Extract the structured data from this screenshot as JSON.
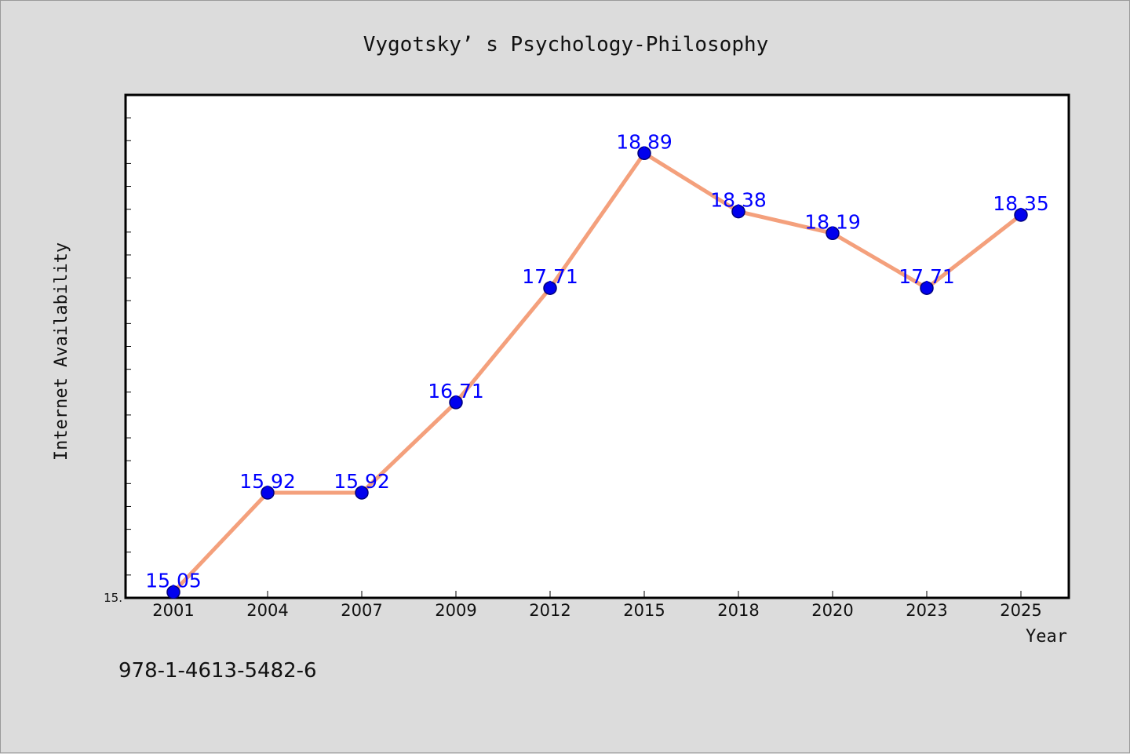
{
  "chart_data": {
    "type": "line",
    "title": "Vygotsky’ s Psychology-Philosophy",
    "xlabel": "Year",
    "ylabel": "Internet Availability",
    "categories": [
      "2001",
      "2004",
      "2007",
      "2009",
      "2012",
      "2015",
      "2018",
      "2020",
      "2023",
      "2025"
    ],
    "series": [
      {
        "values": [
          15.05,
          15.92,
          15.92,
          16.71,
          17.71,
          18.89,
          18.38,
          18.19,
          17.71,
          18.35
        ],
        "data_labels": [
          "15.05",
          "15.92",
          "15.92",
          "16.71",
          "17.71",
          "18.89",
          "18.38",
          "18.19",
          "17.71",
          "18.35"
        ]
      }
    ],
    "ylim": [
      15.0,
      19.4
    ],
    "ytick_labels": [
      "15."
    ],
    "ytick_values": [
      15.0
    ],
    "minor_tick_step": 0.2,
    "grid": false,
    "colors": {
      "line": "#f4a07c",
      "marker_fill": "#0000ee",
      "marker_stroke": "#00007a",
      "data_label": "#0000ff",
      "plot_background": "#ffffff",
      "page_background": "#dcdcdc",
      "frame": "#000000"
    }
  },
  "footer": {
    "isbn": "978-1-4613-5482-6"
  }
}
